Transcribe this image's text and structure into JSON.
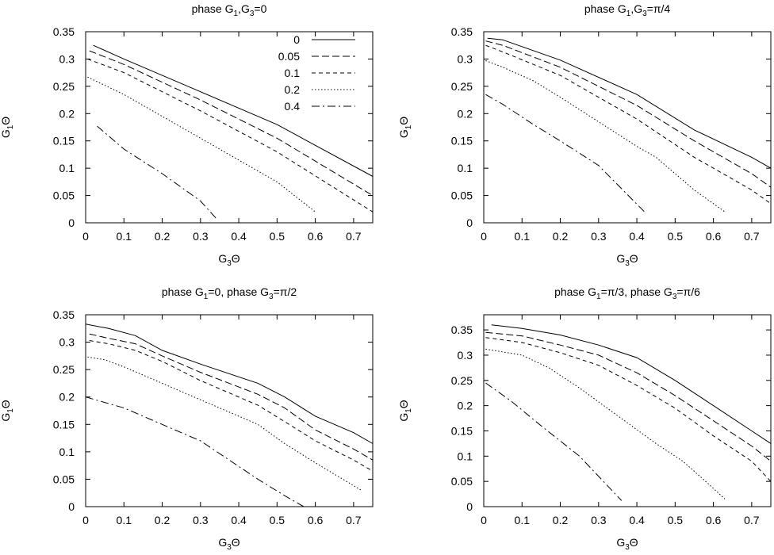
{
  "chart_data": [
    {
      "type": "line",
      "title": "phase G₁,G₃=0",
      "xlabel": "G₃Θ",
      "ylabel": "G₁Θ",
      "xlim": [
        0,
        0.75
      ],
      "ylim": [
        0,
        0.35
      ],
      "xticks": [
        "0",
        "0.1",
        "0.2",
        "0.3",
        "0.4",
        "0.5",
        "0.6",
        "0.7"
      ],
      "yticks": [
        "0",
        "0.05",
        "0.1",
        "0.15",
        "0.2",
        "0.25",
        "0.3",
        "0.35"
      ],
      "legend": "top-right",
      "grid": false,
      "series": [
        {
          "name": "0",
          "dash": "solid",
          "points": [
            [
              0.02,
              0.325
            ],
            [
              0.1,
              0.3
            ],
            [
              0.3,
              0.24
            ],
            [
              0.5,
              0.18
            ],
            [
              0.75,
              0.085
            ]
          ]
        },
        {
          "name": "0.05",
          "dash": "dashed",
          "points": [
            [
              0.01,
              0.315
            ],
            [
              0.1,
              0.29
            ],
            [
              0.3,
              0.225
            ],
            [
              0.5,
              0.155
            ],
            [
              0.75,
              0.05
            ]
          ]
        },
        {
          "name": "0.1",
          "dash": "dashed2",
          "points": [
            [
              0.005,
              0.3
            ],
            [
              0.1,
              0.275
            ],
            [
              0.3,
              0.205
            ],
            [
              0.5,
              0.13
            ],
            [
              0.75,
              0.02
            ]
          ]
        },
        {
          "name": "0.2",
          "dash": "dotted",
          "points": [
            [
              0.005,
              0.267
            ],
            [
              0.1,
              0.235
            ],
            [
              0.3,
              0.155
            ],
            [
              0.5,
              0.075
            ],
            [
              0.6,
              0.02
            ]
          ]
        },
        {
          "name": "0.4",
          "dash": "dashdot",
          "points": [
            [
              0.03,
              0.177
            ],
            [
              0.1,
              0.135
            ],
            [
              0.2,
              0.09
            ],
            [
              0.3,
              0.04
            ],
            [
              0.345,
              0.005
            ]
          ]
        }
      ]
    },
    {
      "type": "line",
      "title": "phase G₁,G₃=π/4",
      "xlabel": "G₃Θ",
      "ylabel": "G₁Θ",
      "xlim": [
        0,
        0.75
      ],
      "ylim": [
        0,
        0.35
      ],
      "xticks": [
        "0",
        "0.1",
        "0.2",
        "0.3",
        "0.4",
        "0.5",
        "0.6",
        "0.7"
      ],
      "yticks": [
        "0",
        "0.05",
        "0.1",
        "0.15",
        "0.2",
        "0.25",
        "0.3",
        "0.35"
      ],
      "grid": false,
      "series": [
        {
          "dash": "solid",
          "points": [
            [
              0.01,
              0.338
            ],
            [
              0.05,
              0.335
            ],
            [
              0.2,
              0.298
            ],
            [
              0.4,
              0.235
            ],
            [
              0.55,
              0.17
            ],
            [
              0.7,
              0.12
            ],
            [
              0.75,
              0.1
            ]
          ]
        },
        {
          "dash": "dashed",
          "points": [
            [
              0.005,
              0.333
            ],
            [
              0.05,
              0.325
            ],
            [
              0.2,
              0.285
            ],
            [
              0.4,
              0.215
            ],
            [
              0.55,
              0.15
            ],
            [
              0.7,
              0.09
            ],
            [
              0.75,
              0.065
            ]
          ]
        },
        {
          "dash": "dashed2",
          "points": [
            [
              0.005,
              0.325
            ],
            [
              0.05,
              0.313
            ],
            [
              0.2,
              0.27
            ],
            [
              0.4,
              0.19
            ],
            [
              0.55,
              0.12
            ],
            [
              0.7,
              0.06
            ],
            [
              0.75,
              0.035
            ]
          ]
        },
        {
          "dash": "dotted",
          "points": [
            [
              0.005,
              0.297
            ],
            [
              0.05,
              0.285
            ],
            [
              0.13,
              0.26
            ],
            [
              0.2,
              0.23
            ],
            [
              0.3,
              0.185
            ],
            [
              0.4,
              0.14
            ],
            [
              0.45,
              0.12
            ],
            [
              0.55,
              0.06
            ],
            [
              0.63,
              0.02
            ]
          ]
        },
        {
          "dash": "dashdot",
          "points": [
            [
              0.005,
              0.235
            ],
            [
              0.05,
              0.217
            ],
            [
              0.13,
              0.18
            ],
            [
              0.2,
              0.15
            ],
            [
              0.3,
              0.105
            ],
            [
              0.42,
              0.02
            ]
          ]
        }
      ]
    },
    {
      "type": "line",
      "title": "phase G₁=0, phase G₃=π/2",
      "xlabel": "G₃Θ",
      "ylabel": "G₁Θ",
      "xlim": [
        0,
        0.75
      ],
      "ylim": [
        0,
        0.35
      ],
      "xticks": [
        "0",
        "0.1",
        "0.2",
        "0.3",
        "0.4",
        "0.5",
        "0.6",
        "0.7"
      ],
      "yticks": [
        "0",
        "0.05",
        "0.1",
        "0.15",
        "0.2",
        "0.25",
        "0.3",
        "0.35"
      ],
      "grid": false,
      "series": [
        {
          "dash": "solid",
          "points": [
            [
              0,
              0.333
            ],
            [
              0.06,
              0.325
            ],
            [
              0.13,
              0.312
            ],
            [
              0.2,
              0.285
            ],
            [
              0.3,
              0.26
            ],
            [
              0.45,
              0.225
            ],
            [
              0.52,
              0.2
            ],
            [
              0.6,
              0.165
            ],
            [
              0.7,
              0.135
            ],
            [
              0.75,
              0.115
            ]
          ]
        },
        {
          "dash": "dashed",
          "points": [
            [
              0.01,
              0.315
            ],
            [
              0.06,
              0.307
            ],
            [
              0.13,
              0.297
            ],
            [
              0.2,
              0.275
            ],
            [
              0.3,
              0.245
            ],
            [
              0.45,
              0.205
            ],
            [
              0.52,
              0.18
            ],
            [
              0.6,
              0.14
            ],
            [
              0.7,
              0.105
            ],
            [
              0.75,
              0.085
            ]
          ]
        },
        {
          "dash": "dashed2",
          "points": [
            [
              0.01,
              0.303
            ],
            [
              0.06,
              0.297
            ],
            [
              0.13,
              0.285
            ],
            [
              0.2,
              0.265
            ],
            [
              0.3,
              0.23
            ],
            [
              0.45,
              0.185
            ],
            [
              0.52,
              0.155
            ],
            [
              0.6,
              0.12
            ],
            [
              0.7,
              0.085
            ],
            [
              0.75,
              0.065
            ]
          ]
        },
        {
          "dash": "dotted",
          "points": [
            [
              0.005,
              0.273
            ],
            [
              0.05,
              0.268
            ],
            [
              0.1,
              0.255
            ],
            [
              0.2,
              0.225
            ],
            [
              0.3,
              0.195
            ],
            [
              0.45,
              0.15
            ],
            [
              0.52,
              0.115
            ],
            [
              0.6,
              0.08
            ],
            [
              0.72,
              0.03
            ]
          ]
        },
        {
          "dash": "dashdot",
          "points": [
            [
              0,
              0.2
            ],
            [
              0.05,
              0.19
            ],
            [
              0.1,
              0.18
            ],
            [
              0.2,
              0.15
            ],
            [
              0.3,
              0.12
            ],
            [
              0.45,
              0.05
            ],
            [
              0.52,
              0.02
            ],
            [
              0.57,
              0
            ]
          ]
        }
      ]
    },
    {
      "type": "line",
      "title": "phase G₁=π/3, phase G₃=π/6",
      "xlabel": "G₃Θ",
      "ylabel": "G₁Θ",
      "xlim": [
        0,
        0.75
      ],
      "ylim": [
        0,
        0.38
      ],
      "xticks": [
        "0",
        "0.1",
        "0.2",
        "0.3",
        "0.4",
        "0.5",
        "0.6",
        "0.7"
      ],
      "yticks": [
        "0",
        "0.05",
        "0.1",
        "0.15",
        "0.2",
        "0.25",
        "0.3",
        "0.35"
      ],
      "grid": false,
      "series": [
        {
          "dash": "solid",
          "points": [
            [
              0.02,
              0.36
            ],
            [
              0.1,
              0.353
            ],
            [
              0.2,
              0.34
            ],
            [
              0.3,
              0.32
            ],
            [
              0.4,
              0.295
            ],
            [
              0.5,
              0.25
            ],
            [
              0.6,
              0.2
            ],
            [
              0.7,
              0.15
            ],
            [
              0.75,
              0.125
            ]
          ]
        },
        {
          "dash": "dashed",
          "points": [
            [
              0.005,
              0.345
            ],
            [
              0.1,
              0.338
            ],
            [
              0.2,
              0.32
            ],
            [
              0.3,
              0.3
            ],
            [
              0.4,
              0.265
            ],
            [
              0.5,
              0.22
            ],
            [
              0.6,
              0.17
            ],
            [
              0.7,
              0.12
            ],
            [
              0.75,
              0.09
            ]
          ]
        },
        {
          "dash": "dashed2",
          "points": [
            [
              0.005,
              0.335
            ],
            [
              0.1,
              0.325
            ],
            [
              0.2,
              0.305
            ],
            [
              0.3,
              0.28
            ],
            [
              0.4,
              0.24
            ],
            [
              0.5,
              0.195
            ],
            [
              0.6,
              0.14
            ],
            [
              0.7,
              0.09
            ],
            [
              0.75,
              0.05
            ]
          ]
        },
        {
          "dash": "dotted",
          "points": [
            [
              0.005,
              0.312
            ],
            [
              0.1,
              0.3
            ],
            [
              0.17,
              0.275
            ],
            [
              0.25,
              0.235
            ],
            [
              0.35,
              0.18
            ],
            [
              0.45,
              0.125
            ],
            [
              0.52,
              0.09
            ],
            [
              0.58,
              0.05
            ],
            [
              0.63,
              0.015
            ]
          ]
        },
        {
          "dash": "dashdot",
          "points": [
            [
              0.005,
              0.245
            ],
            [
              0.07,
              0.21
            ],
            [
              0.15,
              0.16
            ],
            [
              0.25,
              0.1
            ],
            [
              0.36,
              0.012
            ]
          ]
        }
      ]
    }
  ]
}
